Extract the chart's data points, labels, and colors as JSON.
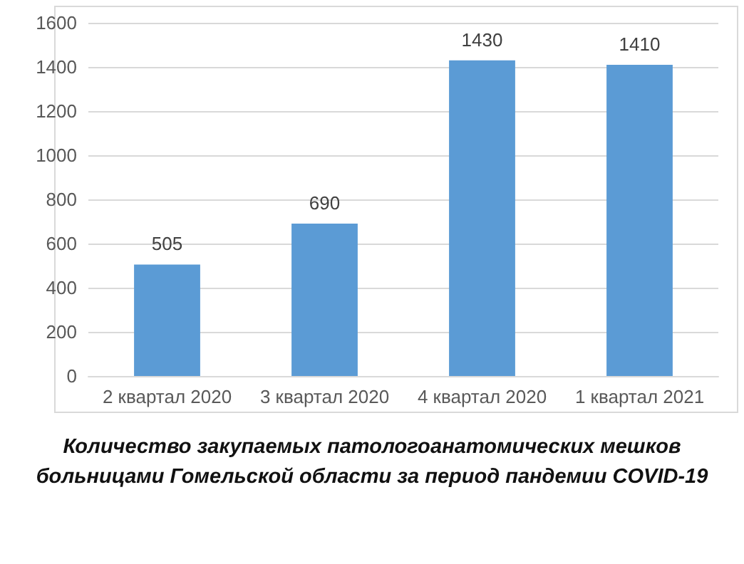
{
  "chart_data": {
    "type": "bar",
    "categories": [
      "2 квартал 2020",
      "3 квартал 2020",
      "4 квартал 2020",
      "1 квартал 2021"
    ],
    "values": [
      505,
      690,
      1430,
      1410
    ],
    "color": "#5b9bd5",
    "ylim": [
      0,
      1600
    ],
    "yticks": [
      0,
      200,
      400,
      600,
      800,
      1000,
      1200,
      1400,
      1600
    ],
    "grid": "y",
    "data_labels": true,
    "annotations": [
      "Количество закупаемых патологоанатомических мешков больницами Гомельской области за период пандемии COVID-19"
    ]
  }
}
